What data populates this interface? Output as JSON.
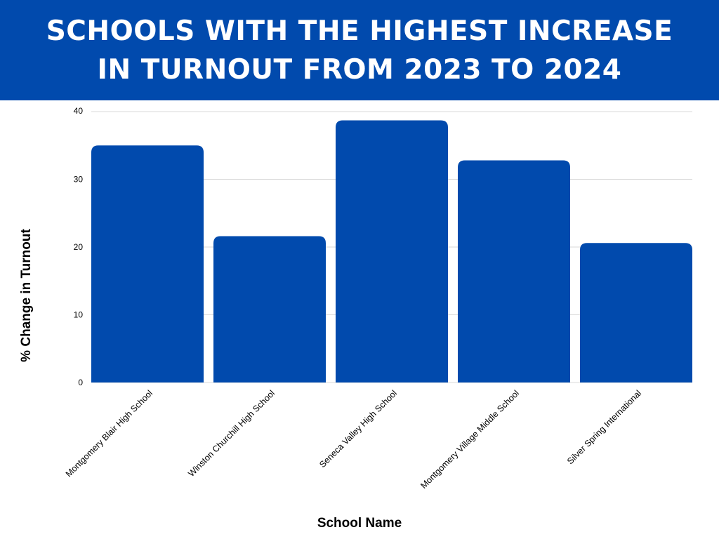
{
  "chart_data": {
    "type": "bar",
    "title": "Schools with the highest increase in turnout from 2023 to 2024",
    "xlabel": "School Name",
    "ylabel": "% Change in Turnout",
    "categories": [
      "Montgomery Blair High School",
      "Winston Churchill High School",
      "Seneca Valley High School",
      "Montgomery Village Middle School",
      "Silver Spring International"
    ],
    "values": [
      35,
      21.6,
      38.7,
      32.8,
      20.6
    ],
    "ylim": [
      0,
      40
    ],
    "yticks": [
      "0",
      "10",
      "20",
      "30",
      "40"
    ],
    "grid": true,
    "legend": "none",
    "colors": {
      "bar": "#014aad",
      "banner": "#014aad",
      "grid": "#d9d9d9",
      "text": "#000000"
    }
  }
}
